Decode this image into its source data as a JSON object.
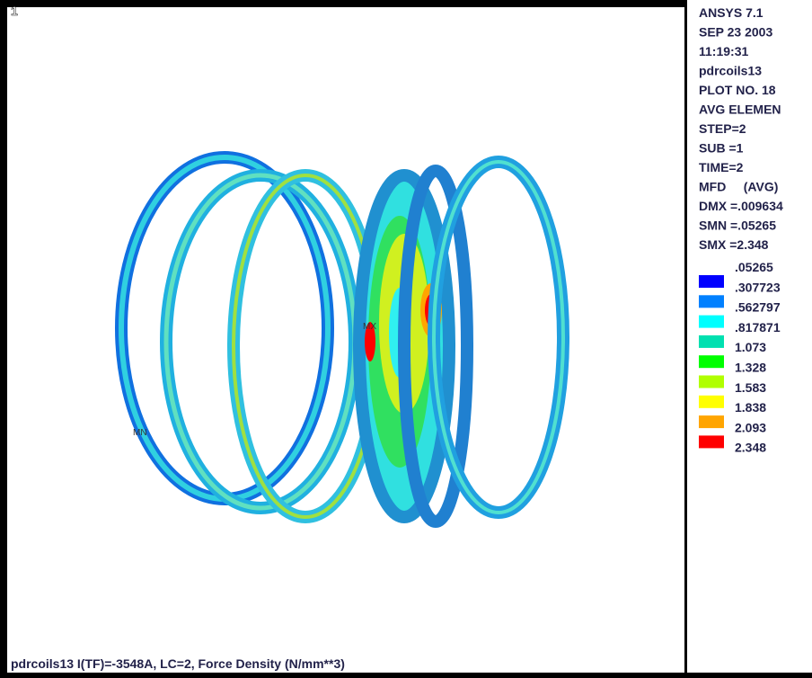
{
  "window_number": "1",
  "viewport_labels": {
    "max": "MX",
    "min": "MN"
  },
  "info": [
    "ANSYS 7.1",
    "SEP 23 2003",
    "11:19:31",
    "pdrcoils13",
    "PLOT NO. 18",
    "AVG ELEMEN",
    "STEP=2",
    "SUB =1",
    "TIME=2",
    "MFD     (AVG)",
    "DMX =.009634",
    "SMN =.05265",
    "SMX =2.348"
  ],
  "legend": {
    "labels": [
      ".05265",
      ".307723",
      ".562797",
      ".817871",
      "1.073",
      "1.328",
      "1.583",
      "1.838",
      "2.093",
      "2.348"
    ],
    "colors": [
      "#0000ff",
      "#0080ff",
      "#00ffff",
      "#00e0b0",
      "#00ff00",
      "#b0ff00",
      "#ffff00",
      "#ffa500",
      "#ff0000"
    ]
  },
  "caption": "pdrcoils13 I(TF)=-3548A, LC=2, Force Density (N/mm**3)"
}
